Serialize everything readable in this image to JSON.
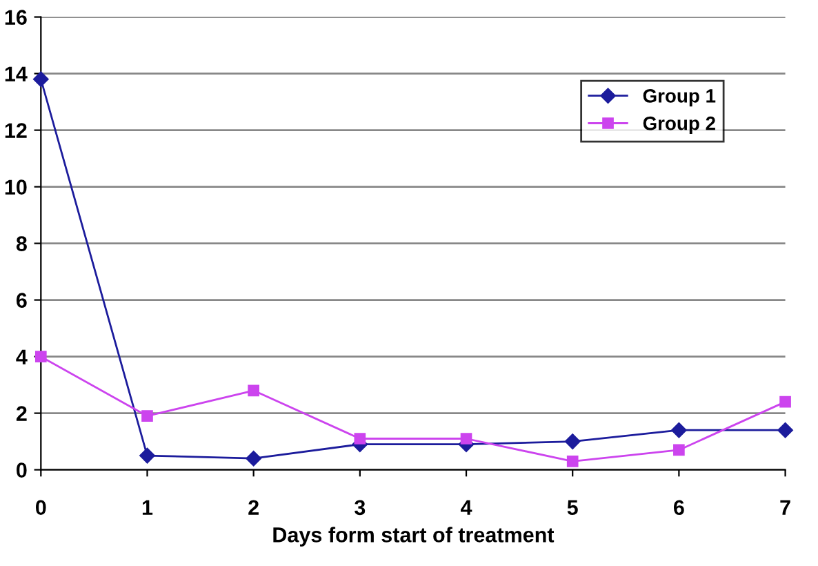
{
  "chart_data": {
    "type": "line",
    "xlabel": "Days form start of treatment",
    "x": [
      0,
      1,
      2,
      3,
      4,
      5,
      6,
      7
    ],
    "series": [
      {
        "name": "Group 1",
        "color": "#1c1c9c",
        "marker": "diamond",
        "values": [
          13.8,
          0.5,
          0.4,
          0.9,
          0.9,
          1.0,
          1.4,
          1.4
        ]
      },
      {
        "name": "Group 2",
        "color": "#cc44ee",
        "marker": "square",
        "values": [
          4.0,
          1.9,
          2.8,
          1.1,
          1.1,
          0.3,
          0.7,
          2.4
        ]
      }
    ],
    "xlim": [
      0,
      7
    ],
    "xticks": [
      0,
      1,
      2,
      3,
      4,
      5,
      6,
      7
    ],
    "ylim": [
      0,
      16
    ],
    "yticks": [
      0,
      2,
      4,
      6,
      8,
      10,
      12,
      14,
      16
    ],
    "grid": "y",
    "legend": "top right",
    "line_style": "solid"
  }
}
